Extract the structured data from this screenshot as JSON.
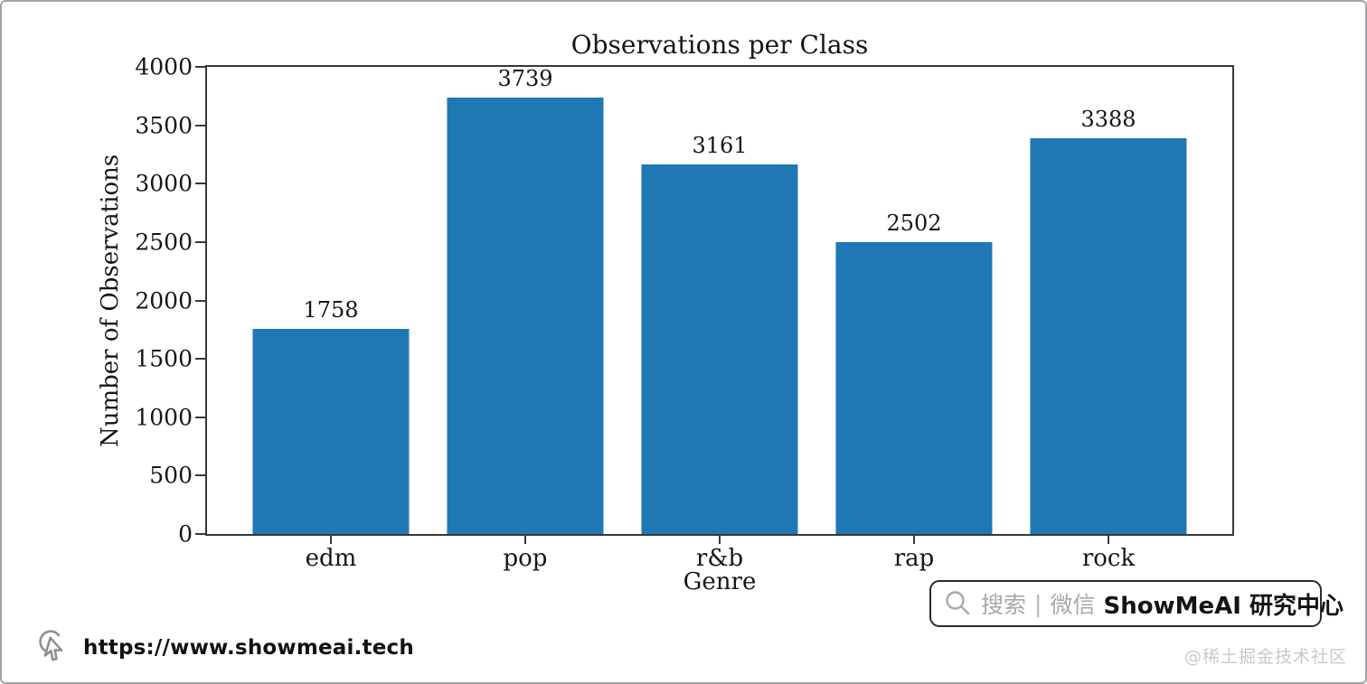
{
  "chart_data": {
    "type": "bar",
    "title": "Observations per Class",
    "xlabel": "Genre",
    "ylabel": "Number of Observations",
    "categories": [
      "edm",
      "pop",
      "r&b",
      "rap",
      "rock"
    ],
    "values": [
      1758,
      3739,
      3161,
      2502,
      3388
    ],
    "ylim": [
      0,
      4000
    ],
    "yticks": [
      0,
      500,
      1000,
      1500,
      2000,
      2500,
      3000,
      3500,
      4000
    ],
    "grid": false,
    "legend_position": "none",
    "value_labels_shown": true,
    "bar_color": "#1f77b4"
  },
  "footer": {
    "url": "https://www.showmeai.tech"
  },
  "badge": {
    "search_label": "搜索",
    "divider": "|",
    "channel_label": "微信",
    "brand_label": "ShowMeAI 研究中心"
  },
  "watermark": "@稀土掘金技术社区"
}
